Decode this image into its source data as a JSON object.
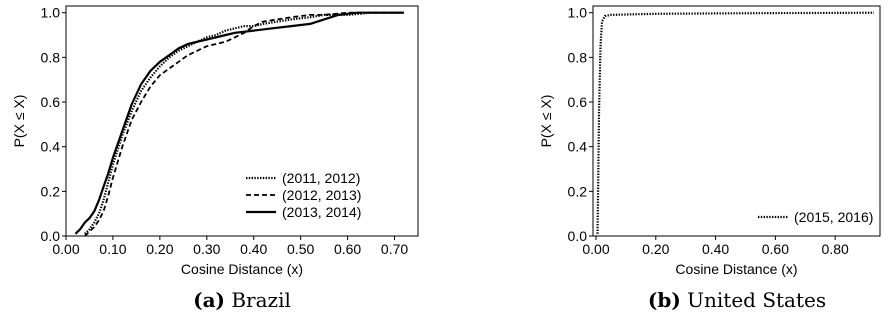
{
  "chart_data": [
    {
      "type": "line",
      "caption_tag": "(a)",
      "caption_text": "Brazil",
      "xlabel": "Cosine Distance (x)",
      "ylabel": "P(X ≤ X)",
      "xlim": [
        0.0,
        0.75
      ],
      "ylim": [
        0.0,
        1.03
      ],
      "xticks": [
        "0.00",
        "0.10",
        "0.20",
        "0.30",
        "0.40",
        "0.50",
        "0.60",
        "0.70"
      ],
      "yticks": [
        "0.0",
        "0.2",
        "0.4",
        "0.6",
        "0.8",
        "1.0"
      ],
      "legend_position": "bottom-right",
      "series": [
        {
          "name": "(2011, 2012)",
          "style": "dotted",
          "x": [
            0.04,
            0.05,
            0.06,
            0.07,
            0.08,
            0.09,
            0.1,
            0.12,
            0.14,
            0.16,
            0.18,
            0.2,
            0.22,
            0.24,
            0.26,
            0.28,
            0.3,
            0.32,
            0.34,
            0.36,
            0.38,
            0.4,
            0.42,
            0.45,
            0.48,
            0.52,
            0.55,
            0.6,
            0.65,
            0.72
          ],
          "y": [
            0.01,
            0.03,
            0.06,
            0.1,
            0.16,
            0.24,
            0.32,
            0.45,
            0.56,
            0.65,
            0.71,
            0.76,
            0.8,
            0.83,
            0.85,
            0.87,
            0.89,
            0.9,
            0.92,
            0.93,
            0.94,
            0.94,
            0.95,
            0.96,
            0.97,
            0.98,
            0.99,
            0.99,
            1.0,
            1.0
          ]
        },
        {
          "name": "(2012, 2013)",
          "style": "dashed",
          "x": [
            0.04,
            0.05,
            0.06,
            0.07,
            0.08,
            0.09,
            0.1,
            0.12,
            0.14,
            0.16,
            0.18,
            0.2,
            0.22,
            0.24,
            0.26,
            0.28,
            0.3,
            0.32,
            0.34,
            0.36,
            0.38,
            0.4,
            0.42,
            0.45,
            0.48,
            0.52,
            0.55,
            0.6,
            0.65,
            0.72
          ],
          "y": [
            0.0,
            0.02,
            0.04,
            0.07,
            0.11,
            0.18,
            0.26,
            0.4,
            0.52,
            0.6,
            0.67,
            0.72,
            0.75,
            0.78,
            0.81,
            0.83,
            0.85,
            0.86,
            0.87,
            0.89,
            0.91,
            0.94,
            0.96,
            0.97,
            0.98,
            0.99,
            0.99,
            1.0,
            1.0,
            1.0
          ]
        },
        {
          "name": "(2013, 2014)",
          "style": "solid",
          "x": [
            0.02,
            0.03,
            0.04,
            0.05,
            0.06,
            0.07,
            0.08,
            0.09,
            0.1,
            0.12,
            0.14,
            0.16,
            0.18,
            0.2,
            0.22,
            0.24,
            0.26,
            0.28,
            0.3,
            0.32,
            0.34,
            0.36,
            0.4,
            0.44,
            0.48,
            0.52,
            0.55,
            0.58,
            0.62,
            0.66,
            0.72
          ],
          "y": [
            0.01,
            0.03,
            0.06,
            0.08,
            0.11,
            0.16,
            0.22,
            0.28,
            0.35,
            0.47,
            0.59,
            0.68,
            0.74,
            0.78,
            0.81,
            0.84,
            0.86,
            0.87,
            0.88,
            0.89,
            0.9,
            0.91,
            0.92,
            0.93,
            0.94,
            0.95,
            0.97,
            0.99,
            1.0,
            1.0,
            1.0
          ]
        }
      ]
    },
    {
      "type": "line",
      "caption_tag": "(b)",
      "caption_text": "United States",
      "xlabel": "Cosine Distance (x)",
      "ylabel": "P(X ≤ X)",
      "xlim": [
        -0.01,
        0.95
      ],
      "ylim": [
        0.0,
        1.03
      ],
      "xticks": [
        "0.00",
        "0.20",
        "0.40",
        "0.60",
        "0.80"
      ],
      "yticks": [
        "0.0",
        "0.2",
        "0.4",
        "0.6",
        "0.8",
        "1.0"
      ],
      "legend_position": "bottom-right",
      "series": [
        {
          "name": "(2015, 2016)",
          "style": "dotted",
          "x": [
            0.005,
            0.007,
            0.01,
            0.015,
            0.02,
            0.03,
            0.05,
            0.1,
            0.2,
            0.4,
            0.6,
            0.8,
            0.93
          ],
          "y": [
            0.01,
            0.2,
            0.55,
            0.85,
            0.96,
            0.985,
            0.99,
            0.992,
            0.995,
            0.997,
            0.998,
            0.999,
            1.0
          ]
        }
      ]
    }
  ]
}
